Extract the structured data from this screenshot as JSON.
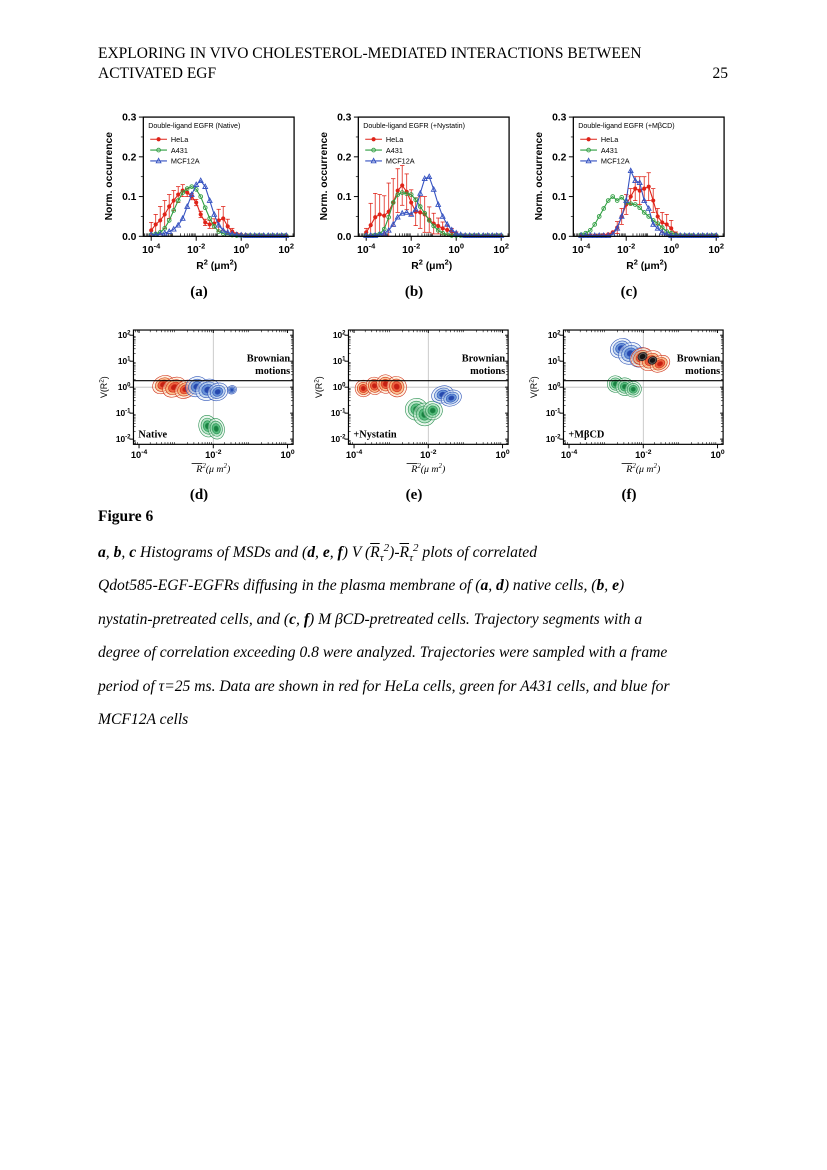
{
  "page": {
    "header_line1": "EXPLORING IN VIVO CHOLESTEROL-MEDIATED INTERACTIONS BETWEEN",
    "header_line2": "ACTIVATED EGF",
    "page_number": "25"
  },
  "figure": {
    "title": "Figure 6",
    "panel_labels": [
      "(a)",
      "(b)",
      "(c)",
      "(d)",
      "(e)",
      "(f)"
    ]
  },
  "colors": {
    "hela": "#df2318",
    "a431": "#2f9e41",
    "mcf12a": "#3552c1",
    "grid": "#bdbdbd",
    "axis": "#000000",
    "contour_fills": {
      "hela": [
        "#fce3c2",
        "#f6a25c",
        "#e8442a",
        "#c01810"
      ],
      "a431": [
        "#d9f0e0",
        "#92d8ac",
        "#3cb069",
        "#117a3a"
      ],
      "mcf12a": [
        "#dce7f6",
        "#9fc0e8",
        "#4f7fd0",
        "#1f3fa8"
      ],
      "dark": [
        "#555555",
        "#111111"
      ]
    },
    "contour_strokes": {
      "hela": "#d03018",
      "a431": "#2a9050",
      "mcf12a": "#2f55b8",
      "dark": "#111111"
    }
  },
  "chart_data": [
    {
      "id": "a",
      "type": "line",
      "title": "Double-ligand EGFR (Native)",
      "ylabel": "Norm. occurrence",
      "xlabel": "R² (μm²)",
      "x_tick_exponents": [
        -4,
        -2,
        0,
        2
      ],
      "y_ticks": [
        0.0,
        0.1,
        0.2,
        0.3
      ],
      "ylim": [
        0,
        0.3
      ],
      "xlog_start": -4,
      "xlog_step": 0.2,
      "legend_position": "top-left",
      "series": [
        {
          "name": "HeLa",
          "color": "hela",
          "marker": "filled-circle",
          "values": [
            0.015,
            0.03,
            0.04,
            0.055,
            0.075,
            0.09,
            0.105,
            0.115,
            0.11,
            0.1,
            0.085,
            0.055,
            0.035,
            0.03,
            0.032,
            0.04,
            0.045,
            0.025,
            0.012,
            0.006,
            0.004,
            0.003,
            0.002,
            0.002,
            0.002,
            0.002,
            0.002,
            0.002,
            0.002,
            0.002,
            0.002
          ],
          "errors": [
            0.02,
            0.025,
            0.035,
            0.035,
            0.03,
            0.025,
            0.02,
            0.015,
            0.01,
            0.008,
            0.008,
            0.008,
            0.008,
            0.01,
            0.012,
            0.028,
            0.03,
            0.018,
            0.008,
            0,
            0,
            0,
            0,
            0,
            0,
            0,
            0,
            0,
            0,
            0,
            0
          ]
        },
        {
          "name": "A431",
          "color": "a431",
          "marker": "open-circle",
          "values": [
            0.004,
            0.006,
            0.01,
            0.02,
            0.04,
            0.065,
            0.09,
            0.11,
            0.12,
            0.125,
            0.118,
            0.1,
            0.072,
            0.045,
            0.025,
            0.012,
            0.007,
            0.004,
            0.003,
            0.002,
            0.002,
            0.002,
            0.002,
            0.002,
            0.002,
            0.002,
            0.002,
            0.002,
            0.002,
            0.002,
            0.002
          ]
        },
        {
          "name": "MCF12A",
          "color": "mcf12a",
          "marker": "open-triangle",
          "values": [
            0.004,
            0.004,
            0.005,
            0.008,
            0.012,
            0.018,
            0.028,
            0.045,
            0.075,
            0.105,
            0.13,
            0.14,
            0.125,
            0.09,
            0.055,
            0.028,
            0.015,
            0.01,
            0.006,
            0.004,
            0.003,
            0.002,
            0.002,
            0.002,
            0.002,
            0.002,
            0.002,
            0.002,
            0.002,
            0.002,
            0.002
          ]
        }
      ]
    },
    {
      "id": "b",
      "type": "line",
      "title": "Double-ligand EGFR (+Nystatin)",
      "ylabel": "Norm. occurrence",
      "xlabel": "R² (μm²)",
      "x_tick_exponents": [
        -4,
        -2,
        0,
        2
      ],
      "y_ticks": [
        0.0,
        0.1,
        0.2,
        0.3
      ],
      "ylim": [
        0,
        0.3
      ],
      "xlog_start": -4,
      "xlog_step": 0.2,
      "legend_position": "top-left",
      "series": [
        {
          "name": "HeLa",
          "color": "hela",
          "marker": "filled-circle",
          "values": [
            0.01,
            0.028,
            0.048,
            0.055,
            0.052,
            0.062,
            0.085,
            0.115,
            0.128,
            0.112,
            0.085,
            0.062,
            0.06,
            0.055,
            0.042,
            0.032,
            0.026,
            0.02,
            0.016,
            0.012,
            0.006,
            0.003,
            0.002,
            0.002,
            0.002,
            0.002,
            0.002,
            0.002,
            0.002,
            0.002,
            0.002
          ],
          "errors": [
            0.01,
            0.055,
            0.06,
            0.05,
            0.05,
            0.072,
            0.06,
            0.055,
            0.05,
            0.045,
            0.032,
            0.035,
            0.04,
            0.045,
            0.032,
            0.026,
            0.02,
            0.016,
            0.012,
            0.008,
            0.005,
            0,
            0,
            0,
            0,
            0,
            0,
            0,
            0,
            0,
            0
          ]
        },
        {
          "name": "A431",
          "color": "a431",
          "marker": "open-circle",
          "values": [
            0.002,
            0.002,
            0.003,
            0.006,
            0.018,
            0.048,
            0.085,
            0.105,
            0.11,
            0.107,
            0.105,
            0.092,
            0.075,
            0.058,
            0.04,
            0.026,
            0.015,
            0.008,
            0.004,
            0.002,
            0.002,
            0.002,
            0.002,
            0.002,
            0.002,
            0.002,
            0.002,
            0.002,
            0.002,
            0.002,
            0.002
          ]
        },
        {
          "name": "MCF12A",
          "color": "mcf12a",
          "marker": "open-triangle",
          "values": [
            0.002,
            0.002,
            0.002,
            0.004,
            0.008,
            0.015,
            0.03,
            0.048,
            0.058,
            0.06,
            0.055,
            0.068,
            0.108,
            0.145,
            0.15,
            0.118,
            0.08,
            0.05,
            0.03,
            0.016,
            0.008,
            0.004,
            0.002,
            0.002,
            0.002,
            0.002,
            0.002,
            0.002,
            0.002,
            0.002,
            0.002
          ]
        }
      ]
    },
    {
      "id": "c",
      "type": "line",
      "title": "Double-ligand EGFR (+MβCD)",
      "ylabel": "Norm. occurrence",
      "xlabel": "R² (μm²)",
      "x_tick_exponents": [
        -4,
        -2,
        0,
        2
      ],
      "y_ticks": [
        0.0,
        0.1,
        0.2,
        0.3
      ],
      "ylim": [
        0,
        0.3
      ],
      "xlog_start": -4,
      "xlog_step": 0.2,
      "legend_position": "top-left",
      "series": [
        {
          "name": "HeLa",
          "color": "hela",
          "marker": "filled-circle",
          "values": [
            0.002,
            0.002,
            0.002,
            0.002,
            0.002,
            0.003,
            0.005,
            0.01,
            0.022,
            0.05,
            0.08,
            0.1,
            0.12,
            0.115,
            0.12,
            0.125,
            0.09,
            0.05,
            0.035,
            0.03,
            0.02,
            0.006,
            0.002,
            0.002,
            0.002,
            0.002,
            0.002,
            0.002,
            0.002,
            0.002,
            0.002
          ],
          "errors": [
            0,
            0,
            0,
            0,
            0,
            0,
            0,
            0,
            0.015,
            0.02,
            0.025,
            0.02,
            0.03,
            0.035,
            0.03,
            0.035,
            0.03,
            0.02,
            0.025,
            0.025,
            0.02,
            0.005,
            0,
            0,
            0,
            0,
            0,
            0,
            0,
            0,
            0
          ]
        },
        {
          "name": "A431",
          "color": "a431",
          "marker": "open-circle",
          "values": [
            0.004,
            0.008,
            0.015,
            0.03,
            0.05,
            0.07,
            0.09,
            0.1,
            0.09,
            0.098,
            0.085,
            0.082,
            0.08,
            0.072,
            0.06,
            0.05,
            0.04,
            0.032,
            0.022,
            0.012,
            0.008,
            0.004,
            0.002,
            0.002,
            0.002,
            0.002,
            0.002,
            0.002,
            0.002,
            0.002,
            0.002
          ]
        },
        {
          "name": "MCF12A",
          "color": "mcf12a",
          "marker": "open-triangle",
          "values": [
            0.002,
            0.002,
            0.002,
            0.002,
            0.002,
            0.002,
            0.002,
            0.005,
            0.02,
            0.05,
            0.09,
            0.165,
            0.14,
            0.135,
            0.09,
            0.07,
            0.03,
            0.02,
            0.01,
            0.005,
            0.002,
            0.002,
            0.002,
            0.002,
            0.002,
            0.002,
            0.002,
            0.002,
            0.002,
            0.002,
            0.002
          ]
        }
      ]
    },
    {
      "id": "d",
      "type": "contour",
      "corner_label": "Native",
      "annotation": [
        "Brownian",
        "motions"
      ],
      "ylabel": "V(R²)",
      "xlabel": "R²(μm²)",
      "x_tick_exponents": [
        -4,
        -2,
        0
      ],
      "y_tick_exponents": [
        2,
        1,
        0,
        -1,
        -2
      ],
      "threshold_log": 0.25,
      "grid": {
        "x_log": -2,
        "y_log": 0
      },
      "annotation_logy": [
        0.98,
        0.5
      ],
      "clusters": [
        {
          "name": "HeLa",
          "color": "hela",
          "blobs": [
            [
              -3.35,
              0.1,
              0.3,
              0.33,
              -28
            ],
            [
              -3.05,
              0,
              0.33,
              0.36,
              -28
            ],
            [
              -2.75,
              -0.08,
              0.3,
              0.33,
              -28
            ]
          ]
        },
        {
          "name": "MCF12A",
          "color": "mcf12a",
          "blobs": [
            [
              -2.45,
              0.02,
              0.3,
              0.38,
              -25
            ],
            [
              -2.15,
              -0.1,
              0.33,
              0.4,
              -25
            ],
            [
              -1.88,
              -0.18,
              0.28,
              0.33,
              -25
            ],
            [
              -1.5,
              -0.1,
              0.13,
              0.16,
              -20
            ]
          ]
        },
        {
          "name": "A431",
          "color": "a431",
          "blobs": [
            [
              -2.15,
              -1.5,
              0.24,
              0.42,
              -12
            ],
            [
              -1.92,
              -1.6,
              0.22,
              0.4,
              -12
            ]
          ]
        }
      ]
    },
    {
      "id": "e",
      "type": "contour",
      "corner_label": "+Nystatin",
      "annotation": [
        "Brownian",
        "motions"
      ],
      "ylabel": "V(R²)",
      "xlabel": "R²(μm²)",
      "x_tick_exponents": [
        -4,
        -2,
        0
      ],
      "y_tick_exponents": [
        2,
        1,
        0,
        -1,
        -2
      ],
      "threshold_log": 0.25,
      "grid": {
        "x_log": -2,
        "y_log": 0
      },
      "annotation_logy": [
        0.98,
        0.5
      ],
      "clusters": [
        {
          "name": "HeLa",
          "color": "hela",
          "blobs": [
            [
              -3.75,
              -0.05,
              0.22,
              0.32,
              -25
            ],
            [
              -3.45,
              0.05,
              0.22,
              0.34,
              -25
            ],
            [
              -3.15,
              0.12,
              0.24,
              0.36,
              -25
            ],
            [
              -2.85,
              0.02,
              0.26,
              0.4,
              -25
            ]
          ]
        },
        {
          "name": "A431",
          "color": "a431",
          "blobs": [
            [
              -2.32,
              -0.85,
              0.3,
              0.42,
              -10
            ],
            [
              -2.1,
              -1.05,
              0.3,
              0.44,
              -10
            ],
            [
              -1.88,
              -0.9,
              0.26,
              0.36,
              -10
            ]
          ]
        },
        {
          "name": "MCF12A",
          "color": "mcf12a",
          "blobs": [
            [
              -1.62,
              -0.28,
              0.3,
              0.32,
              -20
            ],
            [
              -1.38,
              -0.42,
              0.28,
              0.3,
              -20
            ]
          ]
        }
      ]
    },
    {
      "id": "f",
      "type": "contour",
      "corner_label": "+MβCD",
      "annotation": [
        "Brownian",
        "motions"
      ],
      "ylabel": "V(R²)",
      "xlabel": "R²(μm²)",
      "x_tick_exponents": [
        -4,
        -2,
        0
      ],
      "y_tick_exponents": [
        2,
        1,
        0,
        -1,
        -2
      ],
      "threshold_log": 0.25,
      "grid": {
        "x_log": -2,
        "y_log": 0
      },
      "annotation_logy": [
        0.98,
        0.5
      ],
      "clusters": [
        {
          "name": "A431",
          "color": "a431",
          "blobs": [
            [
              -2.75,
              0.12,
              0.22,
              0.32,
              -20
            ],
            [
              -2.5,
              0.02,
              0.24,
              0.34,
              -20
            ],
            [
              -2.27,
              -0.08,
              0.22,
              0.3,
              -20
            ]
          ]
        },
        {
          "name": "MCF12A",
          "color": "mcf12a",
          "blobs": [
            [
              -2.6,
              1.5,
              0.3,
              0.36,
              -30
            ],
            [
              -2.35,
              1.3,
              0.33,
              0.4,
              -30
            ],
            [
              -2.08,
              1.15,
              0.3,
              0.36,
              -30
            ]
          ]
        },
        {
          "name": "HeLa",
          "color": "hela",
          "blobs": [
            [
              -2.05,
              1.15,
              0.3,
              0.34,
              -30
            ],
            [
              -1.8,
              1.02,
              0.32,
              0.36,
              -30
            ],
            [
              -1.55,
              0.9,
              0.28,
              0.3,
              -30
            ]
          ]
        },
        {
          "name": "overlap-core",
          "color": "dark",
          "blobs": [
            [
              -2.02,
              1.18,
              0.13,
              0.15,
              -30
            ],
            [
              -1.75,
              1.03,
              0.12,
              0.14,
              -30
            ]
          ]
        }
      ]
    }
  ],
  "caption": {
    "lines": [
      [
        {
          "t": "a",
          "b": true
        },
        {
          "t": ", "
        },
        {
          "t": "b",
          "b": true
        },
        {
          "t": ", "
        },
        {
          "t": "c",
          "b": true
        },
        {
          "t": " Histograms of MSDs and ("
        },
        {
          "t": "d",
          "b": true
        },
        {
          "t": ", "
        },
        {
          "t": "e",
          "b": true
        },
        {
          "t": ", "
        },
        {
          "t": "f",
          "b": true
        },
        {
          "t": ") V ("
        },
        {
          "t": "R",
          "ov": true
        },
        {
          "t": "τ",
          "sb": true
        },
        {
          "t": "2",
          "sp": true
        },
        {
          "t": ")-"
        },
        {
          "t": "R",
          "ov": true
        },
        {
          "t": "τ",
          "sb": true
        },
        {
          "t": "2",
          "sp": true
        },
        {
          "t": " plots of correlated"
        }
      ],
      [
        {
          "t": "Qdot585-EGF-EGFRs diffusing in the plasma membrane of ("
        },
        {
          "t": "a",
          "b": true
        },
        {
          "t": ", "
        },
        {
          "t": "d",
          "b": true
        },
        {
          "t": ") native cells, ("
        },
        {
          "t": "b",
          "b": true
        },
        {
          "t": ", "
        },
        {
          "t": "e",
          "b": true
        },
        {
          "t": ")"
        }
      ],
      [
        {
          "t": "nystatin-pretreated cells, and ("
        },
        {
          "t": "c",
          "b": true
        },
        {
          "t": ", "
        },
        {
          "t": "f",
          "b": true
        },
        {
          "t": ") M βCD-pretreated cells. Trajectory segments with a"
        }
      ],
      [
        {
          "t": "degree of correlation exceeding 0.8 were analyzed. Trajectories were sampled with a frame"
        }
      ],
      [
        {
          "t": "period of τ=25 ms. Data are shown in red for HeLa cells, green for A431 cells, and blue for"
        }
      ],
      [
        {
          "t": "MCF12A cells"
        }
      ]
    ]
  }
}
